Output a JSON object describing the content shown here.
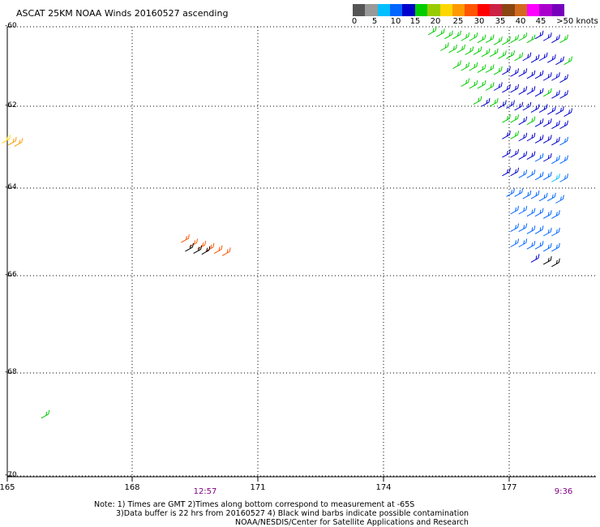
{
  "title": "ASCAT 25KM NOAA Winds 20160527 ascending",
  "colorbar": {
    "colors": [
      "#555555",
      "#999999",
      "#00bfff",
      "#0066ff",
      "#0000cc",
      "#00cc00",
      "#99cc00",
      "#ffd700",
      "#ff9900",
      "#ff5500",
      "#ff0000",
      "#cc2244",
      "#8b4513",
      "#d2691e",
      "#ff00ff",
      "#aa00cc",
      "#7700bb"
    ],
    "labels": [
      "0",
      "5",
      "10",
      "15",
      "20",
      "25",
      "30",
      "35",
      "40",
      "45",
      ">50 knots"
    ]
  },
  "axes": {
    "lat_ticks": [
      "-60",
      "-62",
      "-64",
      "-66",
      "-68",
      "-70"
    ],
    "lon_ticks": [
      "165",
      "168",
      "171",
      "174",
      "177"
    ]
  },
  "times": [
    "12:57",
    "9:36"
  ],
  "notes": {
    "line1": "Note: 1) Times are GMT 2)Times along bottom correspond to measurement at -65S",
    "line2": "3)Data buffer is 22 hrs from 20160527 4) Black wind barbs indicate possible contamination",
    "line3": "NOAA/NESDIS/Center for Satellite Applications and Research"
  },
  "wind_barbs": [
    {
      "lon": 165.05,
      "lat": -62.8,
      "color": "#ffd700"
    },
    {
      "lon": 165.2,
      "lat": -62.85,
      "color": "#ff9900"
    },
    {
      "lon": 165.35,
      "lat": -62.88,
      "color": "#ff9900"
    },
    {
      "lon": 169.4,
      "lat": -65.15,
      "color": "#ff5500"
    },
    {
      "lon": 169.6,
      "lat": -65.25,
      "color": "#ff5500"
    },
    {
      "lon": 169.8,
      "lat": -65.3,
      "color": "#ff5500"
    },
    {
      "lon": 170.0,
      "lat": -65.35,
      "color": "#ff5500"
    },
    {
      "lon": 170.2,
      "lat": -65.4,
      "color": "#ff5500"
    },
    {
      "lon": 170.4,
      "lat": -65.45,
      "color": "#ff5500"
    },
    {
      "lon": 169.5,
      "lat": -65.35,
      "color": "#000000"
    },
    {
      "lon": 169.7,
      "lat": -65.4,
      "color": "#000000"
    },
    {
      "lon": 169.9,
      "lat": -65.42,
      "color": "#000000"
    },
    {
      "lon": 166.0,
      "lat": -68.8,
      "color": "#00cc00"
    },
    {
      "lon": 175.4,
      "lat": -60.1,
      "color": "#00cc00"
    },
    {
      "lon": 175.6,
      "lat": -60.15,
      "color": "#00cc00"
    },
    {
      "lon": 175.8,
      "lat": -60.2,
      "color": "#00cc00"
    },
    {
      "lon": 176.0,
      "lat": -60.2,
      "color": "#00cc00"
    },
    {
      "lon": 176.2,
      "lat": -60.25,
      "color": "#00cc00"
    },
    {
      "lon": 176.4,
      "lat": -60.25,
      "color": "#00cc00"
    },
    {
      "lon": 176.6,
      "lat": -60.3,
      "color": "#00cc00"
    },
    {
      "lon": 176.8,
      "lat": -60.3,
      "color": "#00cc00"
    },
    {
      "lon": 177.0,
      "lat": -60.35,
      "color": "#00cc00"
    },
    {
      "lon": 177.2,
      "lat": -60.35,
      "color": "#00cc00"
    },
    {
      "lon": 177.4,
      "lat": -60.3,
      "color": "#00cc00"
    },
    {
      "lon": 177.6,
      "lat": -60.25,
      "color": "#00cc00"
    },
    {
      "lon": 177.8,
      "lat": -60.3,
      "color": "#00cc00"
    },
    {
      "lon": 178.0,
      "lat": -60.2,
      "color": "#0000cc"
    },
    {
      "lon": 178.2,
      "lat": -60.25,
      "color": "#0000cc"
    },
    {
      "lon": 178.4,
      "lat": -60.3,
      "color": "#0000cc"
    },
    {
      "lon": 178.6,
      "lat": -60.3,
      "color": "#00cc00"
    },
    {
      "lon": 175.7,
      "lat": -60.5,
      "color": "#00cc00"
    },
    {
      "lon": 175.9,
      "lat": -60.55,
      "color": "#00cc00"
    },
    {
      "lon": 176.1,
      "lat": -60.55,
      "color": "#00cc00"
    },
    {
      "lon": 176.3,
      "lat": -60.6,
      "color": "#00cc00"
    },
    {
      "lon": 176.5,
      "lat": -60.6,
      "color": "#00cc00"
    },
    {
      "lon": 176.7,
      "lat": -60.65,
      "color": "#00cc00"
    },
    {
      "lon": 176.9,
      "lat": -60.65,
      "color": "#00cc00"
    },
    {
      "lon": 177.1,
      "lat": -60.7,
      "color": "#00cc00"
    },
    {
      "lon": 177.3,
      "lat": -60.7,
      "color": "#00cc00"
    },
    {
      "lon": 177.5,
      "lat": -60.75,
      "color": "#00cc00"
    },
    {
      "lon": 177.7,
      "lat": -60.75,
      "color": "#0000cc"
    },
    {
      "lon": 177.9,
      "lat": -60.8,
      "color": "#0000cc"
    },
    {
      "lon": 178.1,
      "lat": -60.75,
      "color": "#0000cc"
    },
    {
      "lon": 178.3,
      "lat": -60.8,
      "color": "#0000cc"
    },
    {
      "lon": 178.5,
      "lat": -60.85,
      "color": "#0000cc"
    },
    {
      "lon": 178.7,
      "lat": -60.85,
      "color": "#00cc00"
    },
    {
      "lon": 176.0,
      "lat": -60.95,
      "color": "#00cc00"
    },
    {
      "lon": 176.2,
      "lat": -61.0,
      "color": "#00cc00"
    },
    {
      "lon": 176.4,
      "lat": -61.0,
      "color": "#00cc00"
    },
    {
      "lon": 176.6,
      "lat": -61.05,
      "color": "#00cc00"
    },
    {
      "lon": 176.8,
      "lat": -61.05,
      "color": "#00cc00"
    },
    {
      "lon": 177.0,
      "lat": -61.1,
      "color": "#00cc00"
    },
    {
      "lon": 177.2,
      "lat": -61.1,
      "color": "#0000cc"
    },
    {
      "lon": 177.4,
      "lat": -61.15,
      "color": "#0000cc"
    },
    {
      "lon": 177.6,
      "lat": -61.15,
      "color": "#0000cc"
    },
    {
      "lon": 177.8,
      "lat": -61.2,
      "color": "#0000cc"
    },
    {
      "lon": 178.0,
      "lat": -61.2,
      "color": "#0000cc"
    },
    {
      "lon": 178.2,
      "lat": -61.25,
      "color": "#0000cc"
    },
    {
      "lon": 178.4,
      "lat": -61.25,
      "color": "#0000cc"
    },
    {
      "lon": 178.6,
      "lat": -61.3,
      "color": "#0000cc"
    },
    {
      "lon": 176.2,
      "lat": -61.4,
      "color": "#00cc00"
    },
    {
      "lon": 176.4,
      "lat": -61.45,
      "color": "#00cc00"
    },
    {
      "lon": 176.6,
      "lat": -61.45,
      "color": "#00cc00"
    },
    {
      "lon": 176.8,
      "lat": -61.5,
      "color": "#00cc00"
    },
    {
      "lon": 177.0,
      "lat": -61.5,
      "color": "#0000cc"
    },
    {
      "lon": 177.2,
      "lat": -61.55,
      "color": "#0000cc"
    },
    {
      "lon": 177.4,
      "lat": -61.55,
      "color": "#0000cc"
    },
    {
      "lon": 177.6,
      "lat": -61.6,
      "color": "#0000cc"
    },
    {
      "lon": 177.8,
      "lat": -61.6,
      "color": "#0000cc"
    },
    {
      "lon": 178.0,
      "lat": -61.65,
      "color": "#0000cc"
    },
    {
      "lon": 178.2,
      "lat": -61.65,
      "color": "#00cc00"
    },
    {
      "lon": 178.4,
      "lat": -61.7,
      "color": "#0000cc"
    },
    {
      "lon": 178.6,
      "lat": -61.7,
      "color": "#0000cc"
    },
    {
      "lon": 176.5,
      "lat": -61.85,
      "color": "#00cc00"
    },
    {
      "lon": 176.7,
      "lat": -61.9,
      "color": "#0000cc"
    },
    {
      "lon": 176.9,
      "lat": -61.9,
      "color": "#00cc00"
    },
    {
      "lon": 177.1,
      "lat": -61.95,
      "color": "#0000cc"
    },
    {
      "lon": 177.3,
      "lat": -61.95,
      "color": "#0000cc"
    },
    {
      "lon": 177.5,
      "lat": -62.0,
      "color": "#0000cc"
    },
    {
      "lon": 177.7,
      "lat": -62.0,
      "color": "#0000cc"
    },
    {
      "lon": 177.9,
      "lat": -62.05,
      "color": "#0000cc"
    },
    {
      "lon": 178.1,
      "lat": -62.05,
      "color": "#0000cc"
    },
    {
      "lon": 178.3,
      "lat": -62.1,
      "color": "#0000cc"
    },
    {
      "lon": 178.5,
      "lat": -62.1,
      "color": "#0000cc"
    },
    {
      "lon": 178.7,
      "lat": -62.15,
      "color": "#0000cc"
    },
    {
      "lon": 177.2,
      "lat": -62.3,
      "color": "#00cc00"
    },
    {
      "lon": 177.4,
      "lat": -62.3,
      "color": "#00cc00"
    },
    {
      "lon": 177.6,
      "lat": -62.35,
      "color": "#0000cc"
    },
    {
      "lon": 177.8,
      "lat": -62.35,
      "color": "#00cc00"
    },
    {
      "lon": 178.0,
      "lat": -62.4,
      "color": "#0000cc"
    },
    {
      "lon": 178.2,
      "lat": -62.4,
      "color": "#0000cc"
    },
    {
      "lon": 178.4,
      "lat": -62.45,
      "color": "#0000cc"
    },
    {
      "lon": 178.6,
      "lat": -62.45,
      "color": "#0000cc"
    },
    {
      "lon": 177.2,
      "lat": -62.7,
      "color": "#0000cc"
    },
    {
      "lon": 177.4,
      "lat": -62.7,
      "color": "#00cc00"
    },
    {
      "lon": 177.6,
      "lat": -62.75,
      "color": "#0000cc"
    },
    {
      "lon": 177.8,
      "lat": -62.75,
      "color": "#0000cc"
    },
    {
      "lon": 178.0,
      "lat": -62.8,
      "color": "#0000cc"
    },
    {
      "lon": 178.2,
      "lat": -62.8,
      "color": "#0000cc"
    },
    {
      "lon": 178.4,
      "lat": -62.85,
      "color": "#0000cc"
    },
    {
      "lon": 178.6,
      "lat": -62.85,
      "color": "#0066ff"
    },
    {
      "lon": 177.2,
      "lat": -63.15,
      "color": "#0000cc"
    },
    {
      "lon": 177.4,
      "lat": -63.15,
      "color": "#0000cc"
    },
    {
      "lon": 177.6,
      "lat": -63.2,
      "color": "#0000cc"
    },
    {
      "lon": 177.8,
      "lat": -63.2,
      "color": "#0000cc"
    },
    {
      "lon": 178.0,
      "lat": -63.25,
      "color": "#0066ff"
    },
    {
      "lon": 178.2,
      "lat": -63.25,
      "color": "#0000cc"
    },
    {
      "lon": 178.4,
      "lat": -63.3,
      "color": "#0066ff"
    },
    {
      "lon": 178.6,
      "lat": -63.3,
      "color": "#0066ff"
    },
    {
      "lon": 177.2,
      "lat": -63.6,
      "color": "#0000cc"
    },
    {
      "lon": 177.4,
      "lat": -63.6,
      "color": "#0000cc"
    },
    {
      "lon": 177.6,
      "lat": -63.65,
      "color": "#0066ff"
    },
    {
      "lon": 177.8,
      "lat": -63.65,
      "color": "#0066ff"
    },
    {
      "lon": 178.0,
      "lat": -63.7,
      "color": "#0066ff"
    },
    {
      "lon": 178.2,
      "lat": -63.7,
      "color": "#0066ff"
    },
    {
      "lon": 178.4,
      "lat": -63.75,
      "color": "#00bfff"
    },
    {
      "lon": 178.6,
      "lat": -63.75,
      "color": "#0066ff"
    },
    {
      "lon": 177.3,
      "lat": -64.1,
      "color": "#0066ff"
    },
    {
      "lon": 177.5,
      "lat": -64.1,
      "color": "#0066ff"
    },
    {
      "lon": 177.7,
      "lat": -64.15,
      "color": "#0066ff"
    },
    {
      "lon": 177.9,
      "lat": -64.15,
      "color": "#0066ff"
    },
    {
      "lon": 178.1,
      "lat": -64.2,
      "color": "#0066ff"
    },
    {
      "lon": 178.3,
      "lat": -64.2,
      "color": "#0066ff"
    },
    {
      "lon": 178.5,
      "lat": -64.25,
      "color": "#0066ff"
    },
    {
      "lon": 177.4,
      "lat": -64.5,
      "color": "#0066ff"
    },
    {
      "lon": 177.6,
      "lat": -64.5,
      "color": "#0066ff"
    },
    {
      "lon": 177.8,
      "lat": -64.55,
      "color": "#0066ff"
    },
    {
      "lon": 178.0,
      "lat": -64.55,
      "color": "#0066ff"
    },
    {
      "lon": 178.2,
      "lat": -64.6,
      "color": "#0066ff"
    },
    {
      "lon": 178.4,
      "lat": -64.6,
      "color": "#0066ff"
    },
    {
      "lon": 177.4,
      "lat": -64.9,
      "color": "#0066ff"
    },
    {
      "lon": 177.6,
      "lat": -64.9,
      "color": "#0066ff"
    },
    {
      "lon": 177.8,
      "lat": -64.95,
      "color": "#0066ff"
    },
    {
      "lon": 178.0,
      "lat": -64.95,
      "color": "#0066ff"
    },
    {
      "lon": 178.2,
      "lat": -65.0,
      "color": "#0066ff"
    },
    {
      "lon": 178.4,
      "lat": -65.0,
      "color": "#0066ff"
    },
    {
      "lon": 177.4,
      "lat": -65.25,
      "color": "#0066ff"
    },
    {
      "lon": 177.6,
      "lat": -65.25,
      "color": "#0066ff"
    },
    {
      "lon": 177.8,
      "lat": -65.3,
      "color": "#0066ff"
    },
    {
      "lon": 178.0,
      "lat": -65.3,
      "color": "#0066ff"
    },
    {
      "lon": 178.2,
      "lat": -65.35,
      "color": "#0066ff"
    },
    {
      "lon": 178.4,
      "lat": -65.35,
      "color": "#0066ff"
    },
    {
      "lon": 177.9,
      "lat": -65.6,
      "color": "#0000cc"
    },
    {
      "lon": 178.2,
      "lat": -65.65,
      "color": "#000000"
    },
    {
      "lon": 178.4,
      "lat": -65.7,
      "color": "#000000"
    }
  ]
}
